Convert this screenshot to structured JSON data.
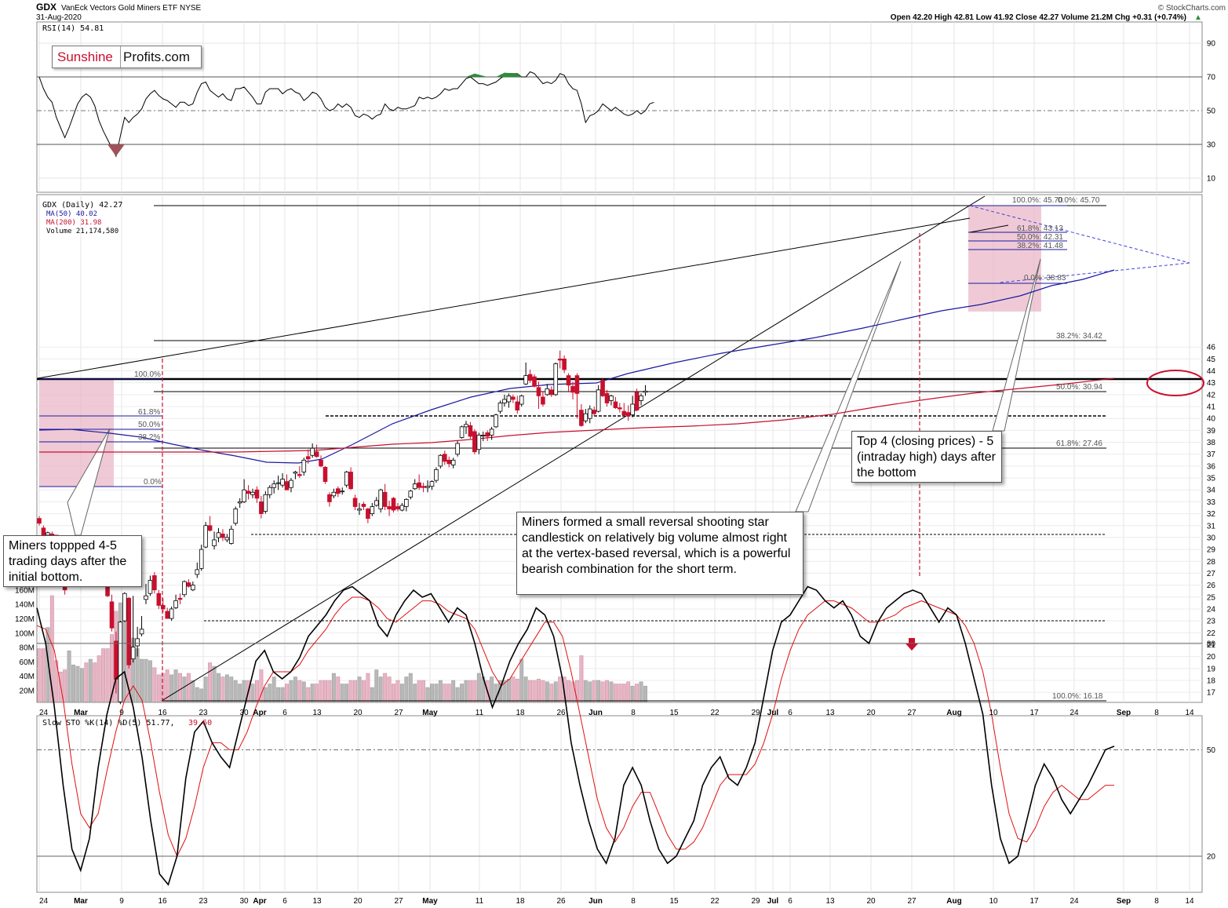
{
  "header": {
    "symbol": "GDX",
    "name": "VanEck Vectors Gold Miners ETF",
    "exchange": "NYSE",
    "date": "31-Aug-2020",
    "watermark": "© StockCharts.com",
    "ohlc_label": "Open 42.20  High 42.81  Low 41.92  Close 42.27  Volume 21.2M  Chg +0.31 (+0.74%)",
    "up_arrow": "▲"
  },
  "logo": {
    "part1": "Sunshine",
    "part2": "Profits.com"
  },
  "legend": {
    "rsi": "RSI(14) 54.81",
    "price": "GDX (Daily) 42.27",
    "ma50": "MA(50) 40.02",
    "ma200": "MA(200) 31.98",
    "volume": "Volume 21,174,580",
    "sto": "Slow STO %K(14) %D(5) 51.77,",
    "sto_d": "39.60"
  },
  "annotations": {
    "left_note": "Miners toppped 4-5 trading days after the initial bottom.",
    "mid_note": "Miners formed a small reversal shooting star candlestick on relatively big volume almost right at the vertex-based reversal, which is a powerful bearish combination for the short term.",
    "right_note": "Top 4 (closing prices) - 5 (intraday high) days after the bottom"
  },
  "colors": {
    "up": "#ffffff",
    "down": "#c8102e",
    "ma50": "#1a1aa0",
    "ma200": "#c8102e",
    "pink": "#e8b4c4",
    "rsi_green": "#2e8b3a",
    "rsi_red": "#a0525a"
  },
  "chart_data": {
    "type": "candlestick",
    "price_axis": {
      "ylim": [
        16,
        46
      ],
      "ticks": [
        17,
        18,
        19,
        20,
        21,
        22,
        23,
        24,
        25,
        26,
        27,
        28,
        29,
        30,
        31,
        32,
        33,
        34,
        35,
        36,
        37,
        38,
        39,
        40,
        41,
        42,
        43,
        44,
        45,
        46
      ]
    },
    "volume_axis": {
      "ticks": [
        "20M",
        "40M",
        "60M",
        "80M",
        "100M",
        "120M",
        "140M",
        "160M"
      ],
      "ylim": [
        0,
        160
      ]
    },
    "rsi_axis": {
      "ylim": [
        0,
        100
      ],
      "ticks": [
        10,
        30,
        50,
        70,
        90
      ]
    },
    "sto_axis": {
      "ylim": [
        0,
        100
      ],
      "ticks": [
        20,
        50,
        80
      ]
    },
    "x_labels": [
      "24",
      "Mar",
      "9",
      "16",
      "23",
      "30",
      "Apr",
      "6",
      "13",
      "20",
      "27",
      "May",
      "11",
      "18",
      "26",
      "Jun",
      "8",
      "15",
      "22",
      "29",
      "Jul",
      "6",
      "13",
      "20",
      "27",
      "Aug",
      "10",
      "17",
      "24",
      "Sep",
      "8",
      "14"
    ],
    "candles": [
      [
        31.6,
        31.8,
        31.0,
        31.2
      ],
      [
        30.8,
        31.0,
        30.0,
        30.2
      ],
      [
        30.2,
        30.5,
        29.8,
        30.4
      ],
      [
        30.3,
        30.5,
        29.9,
        30.0
      ],
      [
        30.2,
        30.2,
        27.6,
        27.9
      ],
      [
        27.9,
        28.2,
        26.4,
        26.6
      ],
      [
        26.0,
        26.3,
        25.2,
        25.6
      ],
      [
        26.6,
        27.0,
        26.4,
        26.9
      ],
      [
        27.0,
        27.2,
        26.8,
        27.2
      ],
      [
        27.6,
        27.9,
        27.2,
        27.8
      ],
      [
        28.5,
        28.9,
        28.0,
        28.7
      ],
      [
        29.1,
        29.3,
        28.8,
        29.0
      ],
      [
        29.4,
        29.7,
        29.1,
        29.6
      ],
      [
        29.7,
        29.8,
        28.9,
        29.1
      ],
      [
        28.9,
        29.0,
        27.8,
        28.0
      ],
      [
        27.8,
        28.0,
        27.3,
        27.6
      ],
      [
        27.6,
        27.7,
        25.0,
        25.1
      ],
      [
        24.6,
        25.2,
        22.1,
        22.4
      ],
      [
        21.3,
        22.1,
        16.9,
        18.1
      ],
      [
        16.2,
        23.0,
        16.0,
        22.9
      ],
      [
        23.0,
        25.4,
        22.9,
        25.3
      ],
      [
        24.9,
        25.0,
        19.0,
        19.3
      ],
      [
        19.8,
        25.1,
        19.5,
        20.8
      ],
      [
        20.9,
        22.5,
        20.0,
        21.5
      ],
      [
        21.9,
        23.4,
        21.7,
        22.3
      ],
      [
        24.8,
        26.1,
        24.4,
        25.1
      ],
      [
        25.3,
        26.8,
        25.1,
        26.4
      ],
      [
        26.8,
        27.1,
        25.3,
        25.6
      ],
      [
        25.3,
        25.6,
        24.0,
        24.3
      ],
      [
        24.3,
        24.9,
        23.7,
        24.0
      ],
      [
        23.8,
        24.1,
        23.2,
        23.2
      ],
      [
        23.2,
        24.2,
        23.0,
        24.0
      ],
      [
        24.1,
        25.2,
        24.0,
        24.7
      ],
      [
        24.9,
        25.3,
        24.4,
        24.8
      ],
      [
        25.2,
        26.4,
        25.0,
        26.3
      ],
      [
        26.2,
        26.5,
        25.8,
        25.9
      ],
      [
        25.6,
        26.3,
        25.5,
        26.0
      ],
      [
        26.9,
        27.9,
        26.6,
        27.3
      ],
      [
        27.4,
        29.4,
        27.2,
        29.0
      ],
      [
        29.2,
        31.3,
        29.1,
        31.0
      ],
      [
        31.0,
        31.8,
        30.5,
        30.6
      ],
      [
        29.3,
        30.5,
        29.0,
        29.8
      ],
      [
        30.0,
        30.8,
        29.6,
        30.4
      ],
      [
        30.3,
        30.7,
        29.7,
        30.0
      ],
      [
        29.8,
        30.3,
        29.6,
        30.0
      ],
      [
        29.5,
        31.0,
        29.4,
        30.7
      ],
      [
        31.2,
        32.6,
        31.0,
        32.4
      ],
      [
        32.9,
        33.3,
        32.5,
        33.0
      ],
      [
        33.0,
        34.9,
        32.9,
        34.0
      ],
      [
        33.9,
        34.4,
        33.2,
        33.7
      ],
      [
        33.6,
        34.1,
        33.3,
        33.8
      ],
      [
        34.0,
        34.3,
        32.9,
        33.3
      ],
      [
        33.0,
        33.5,
        31.6,
        32.0
      ],
      [
        32.2,
        33.9,
        32.0,
        33.6
      ],
      [
        33.6,
        34.4,
        33.3,
        34.2
      ],
      [
        34.2,
        34.8,
        33.7,
        34.5
      ],
      [
        34.6,
        35.2,
        34.0,
        34.6
      ],
      [
        34.4,
        35.4,
        34.2,
        34.9
      ],
      [
        34.7,
        35.3,
        34.1,
        34.0
      ],
      [
        34.2,
        35.0,
        33.8,
        34.8
      ],
      [
        35.4,
        35.6,
        34.9,
        35.5
      ],
      [
        35.3,
        36.0,
        35.0,
        35.2
      ],
      [
        35.5,
        36.7,
        35.2,
        36.5
      ],
      [
        36.8,
        37.4,
        36.2,
        36.6
      ],
      [
        36.9,
        37.9,
        36.7,
        37.5
      ],
      [
        37.2,
        37.8,
        36.7,
        36.8
      ],
      [
        36.5,
        36.9,
        35.9,
        36.0
      ],
      [
        35.9,
        36.0,
        34.5,
        34.7
      ],
      [
        33.6,
        33.8,
        32.6,
        33.0
      ],
      [
        33.5,
        34.1,
        33.3,
        33.8
      ],
      [
        34.1,
        34.3,
        33.4,
        33.7
      ],
      [
        33.9,
        34.2,
        33.6,
        33.9
      ],
      [
        34.4,
        35.6,
        34.2,
        35.5
      ],
      [
        35.5,
        35.9,
        34.0,
        34.1
      ],
      [
        33.3,
        33.6,
        32.3,
        32.6
      ],
      [
        32.3,
        32.9,
        31.9,
        32.4
      ],
      [
        32.8,
        33.0,
        32.3,
        32.6
      ],
      [
        32.4,
        32.5,
        31.2,
        31.6
      ],
      [
        32.0,
        32.9,
        31.8,
        32.6
      ],
      [
        32.7,
        33.4,
        32.6,
        33.1
      ],
      [
        32.4,
        34.1,
        32.1,
        34.0
      ],
      [
        33.8,
        34.5,
        32.3,
        32.6
      ],
      [
        32.6,
        33.1,
        31.8,
        32.4
      ],
      [
        33.3,
        33.4,
        32.1,
        32.3
      ],
      [
        32.6,
        32.9,
        32.2,
        32.4
      ],
      [
        32.3,
        32.9,
        32.2,
        32.7
      ],
      [
        32.6,
        33.3,
        32.2,
        33.2
      ],
      [
        33.4,
        34.0,
        33.2,
        33.9
      ],
      [
        34.1,
        34.9,
        34.0,
        34.5
      ],
      [
        34.6,
        35.3,
        34.0,
        34.2
      ],
      [
        34.3,
        34.6,
        33.8,
        34.2
      ],
      [
        34.2,
        34.8,
        33.8,
        34.3
      ],
      [
        34.3,
        34.8,
        34.0,
        34.7
      ],
      [
        34.8,
        35.9,
        34.6,
        35.7
      ],
      [
        36.0,
        37.0,
        35.8,
        36.9
      ],
      [
        37.0,
        37.3,
        36.1,
        36.4
      ],
      [
        36.5,
        36.8,
        35.9,
        36.2
      ],
      [
        36.1,
        36.7,
        35.8,
        36.5
      ],
      [
        37.0,
        38.1,
        36.8,
        37.9
      ],
      [
        38.4,
        39.4,
        38.3,
        39.3
      ],
      [
        39.3,
        39.8,
        38.7,
        39.5
      ],
      [
        39.4,
        39.7,
        38.3,
        38.5
      ],
      [
        38.9,
        39.1,
        37.0,
        37.2
      ],
      [
        37.4,
        38.8,
        37.0,
        38.6
      ],
      [
        38.6,
        38.9,
        38.1,
        38.6
      ],
      [
        38.8,
        39.0,
        38.1,
        38.5
      ],
      [
        38.6,
        39.3,
        38.2,
        39.1
      ],
      [
        39.3,
        40.4,
        39.2,
        40.3
      ],
      [
        40.6,
        41.5,
        40.4,
        41.3
      ],
      [
        41.3,
        42.0,
        41.0,
        41.6
      ],
      [
        41.4,
        42.1,
        40.9,
        41.9
      ],
      [
        41.8,
        42.0,
        41.3,
        41.6
      ],
      [
        41.4,
        41.9,
        40.4,
        40.7
      ],
      [
        41.2,
        42.0,
        41.0,
        41.9
      ],
      [
        42.9,
        44.7,
        42.8,
        43.6
      ],
      [
        43.7,
        44.1,
        43.0,
        43.2
      ],
      [
        43.5,
        43.7,
        42.6,
        42.7
      ],
      [
        42.6,
        43.1,
        40.8,
        41.9
      ],
      [
        41.8,
        42.3,
        41.0,
        41.2
      ],
      [
        42.0,
        42.9,
        41.9,
        42.5
      ],
      [
        42.4,
        42.7,
        41.8,
        42.0
      ],
      [
        42.0,
        44.7,
        41.9,
        44.6
      ],
      [
        45.0,
        45.7,
        44.2,
        44.9
      ],
      [
        45.0,
        45.3,
        43.8,
        44.1
      ],
      [
        43.6,
        43.8,
        42.2,
        42.8
      ],
      [
        42.7,
        43.1,
        41.6,
        42.2
      ],
      [
        43.6,
        43.8,
        40.0,
        42.1
      ],
      [
        40.7,
        41.2,
        39.3,
        39.4
      ],
      [
        39.8,
        40.8,
        39.6,
        40.4
      ],
      [
        40.0,
        41.1,
        39.6,
        40.8
      ],
      [
        40.7,
        41.0,
        40.2,
        40.4
      ],
      [
        40.6,
        42.8,
        40.5,
        42.4
      ],
      [
        43.2,
        43.4,
        41.8,
        41.9
      ],
      [
        42.1,
        42.4,
        41.0,
        41.3
      ],
      [
        41.5,
        42.0,
        41.1,
        41.9
      ],
      [
        41.4,
        41.8,
        40.8,
        40.9
      ],
      [
        40.9,
        41.3,
        40.5,
        40.8
      ],
      [
        40.6,
        41.3,
        40.2,
        40.3
      ],
      [
        40.5,
        41.1,
        39.8,
        40.2
      ],
      [
        40.3,
        41.9,
        40.1,
        41.2
      ],
      [
        42.2,
        42.5,
        40.6,
        40.7
      ],
      [
        41.5,
        42.1,
        41.1,
        41.9
      ],
      [
        42.2,
        42.8,
        41.9,
        42.3
      ]
    ],
    "up_flags_note": "open<close shown hollow; open>close shown red",
    "fib_labels": {
      "right_top": "100.0%: 45.70",
      "right_top2": "0.0%: 45.70",
      "fib618": "61.8%: 43.13",
      "fib50": "50.0%: 42.31",
      "fib382": "38.2%: 41.48",
      "fib0": "0.0%: 38.83",
      "fib_long382": "38.2%: 34.42",
      "fib_long50": "50.0%: 30.94",
      "fib_long618": "61.8%: 27.46",
      "fib_long100": "100.0%: 16.18",
      "left100": "100.0%",
      "left618": "61.8%",
      "left50": "50.0%",
      "left382": "38.2%",
      "left0": "0.0%"
    }
  }
}
